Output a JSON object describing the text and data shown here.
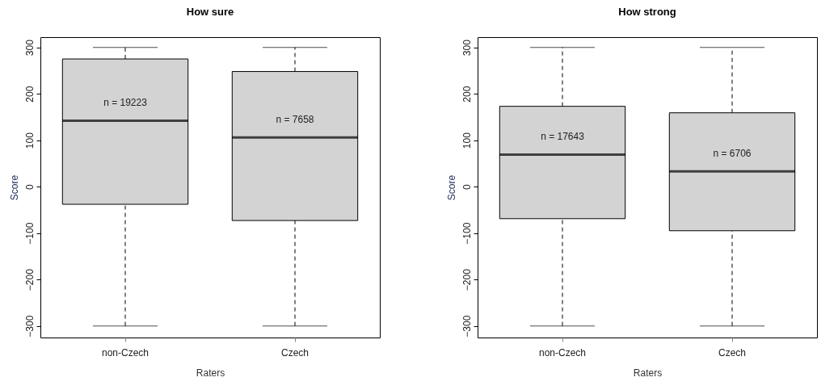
{
  "chart_data": [
    {
      "type": "box",
      "title": "How sure",
      "xlabel": "Raters",
      "ylabel": "Score",
      "categories": [
        "non-Czech",
        "Czech"
      ],
      "ylim": [
        -325,
        322
      ],
      "yticks": [
        -300,
        -200,
        -100,
        0,
        100,
        200,
        300
      ],
      "series": [
        {
          "color": "#d3d3d3",
          "boxes": [
            {
              "low": -300,
              "q1": -38,
              "median": 142,
              "q3": 275,
              "high": 300
            },
            {
              "low": -300,
              "q1": -73,
              "median": 106,
              "q3": 248,
              "high": 300
            }
          ]
        }
      ],
      "annotations": [
        "n = 19223",
        "n = 7658"
      ]
    },
    {
      "type": "box",
      "title": "How strong",
      "xlabel": "Raters",
      "ylabel": "Score",
      "categories": [
        "non-Czech",
        "Czech"
      ],
      "ylim": [
        -325,
        322
      ],
      "yticks": [
        -300,
        -200,
        -100,
        0,
        100,
        200,
        300
      ],
      "series": [
        {
          "color": "#d3d3d3",
          "boxes": [
            {
              "low": -300,
              "q1": -69,
              "median": 69,
              "q3": 173,
              "high": 300
            },
            {
              "low": -300,
              "q1": -95,
              "median": 33,
              "q3": 159,
              "high": 300
            }
          ]
        }
      ],
      "annotations": [
        "n = 17643",
        "n = 6706"
      ]
    }
  ]
}
